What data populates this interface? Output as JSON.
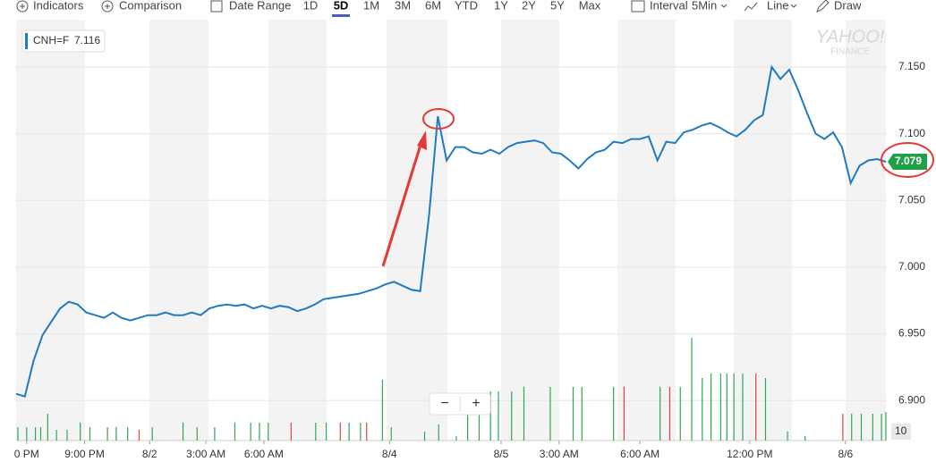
{
  "toolbar": {
    "indicators": "Indicators",
    "comparison": "Comparison",
    "date_range": "Date Range",
    "ranges": [
      "1D",
      "5D",
      "1M",
      "3M",
      "6M",
      "YTD",
      "1Y",
      "2Y",
      "5Y",
      "Max"
    ],
    "active_range": 1,
    "interval": "Interval",
    "interval_value": "5Min",
    "chart_style": "Line",
    "draw": "Draw"
  },
  "watermark": {
    "brand": "YAHOO!",
    "sub": "FINANCE"
  },
  "zoom": {
    "minus": "−",
    "plus": "+"
  },
  "chart_data": {
    "type": "line",
    "legend_symbol": "CNH=F",
    "legend_value": 7.116,
    "x": [
      0,
      1,
      2,
      3,
      4,
      5,
      6,
      7,
      8,
      9,
      10,
      11,
      12,
      13,
      14,
      15,
      16,
      17,
      18,
      19,
      20,
      21,
      22,
      23,
      24,
      25,
      26,
      27,
      28,
      29,
      30,
      31,
      32,
      33,
      34,
      35,
      36,
      37,
      38,
      39,
      40,
      41,
      42,
      43,
      44,
      45,
      46,
      47,
      48,
      49,
      50,
      51,
      52,
      53,
      54,
      55,
      56,
      57,
      58,
      59,
      60,
      61,
      62,
      63,
      64,
      65,
      66,
      67,
      68,
      69,
      70,
      71,
      72,
      73,
      74,
      75,
      76,
      77,
      78,
      79,
      80,
      81,
      82,
      83,
      84,
      85,
      86,
      87,
      88,
      89,
      90,
      91,
      92,
      93,
      94,
      95,
      96,
      97,
      98,
      99
    ],
    "series": [
      {
        "name": "CNH=F",
        "color": "#1f7bc1",
        "values": [
          6.905,
          6.903,
          6.93,
          6.949,
          6.959,
          6.969,
          6.974,
          6.972,
          6.966,
          6.964,
          6.962,
          6.966,
          6.962,
          6.96,
          6.962,
          6.964,
          6.964,
          6.966,
          6.964,
          6.964,
          6.966,
          6.964,
          6.969,
          6.971,
          6.972,
          6.971,
          6.972,
          6.969,
          6.971,
          6.969,
          6.971,
          6.97,
          6.967,
          6.969,
          6.972,
          6.976,
          6.977,
          6.978,
          6.979,
          6.98,
          6.982,
          6.984,
          6.987,
          6.989,
          6.986,
          6.983,
          6.982,
          7.039,
          7.113,
          7.08,
          7.09,
          7.09,
          7.086,
          7.085,
          7.088,
          7.085,
          7.09,
          7.093,
          7.094,
          7.095,
          7.093,
          7.086,
          7.085,
          7.08,
          7.074,
          7.081,
          7.086,
          7.088,
          7.094,
          7.093,
          7.096,
          7.096,
          7.098,
          7.08,
          7.094,
          7.093,
          7.101,
          7.103,
          7.106,
          7.108,
          7.105,
          7.101,
          7.098,
          7.103,
          7.11,
          7.114,
          7.15,
          7.141,
          7.148,
          7.133,
          7.116,
          7.1,
          7.096,
          7.101,
          7.09,
          7.063,
          7.076,
          7.08,
          7.081,
          7.079
        ]
      }
    ],
    "last_color": "#21a04a",
    "xlim": [
      0,
      99
    ],
    "xticks": [
      {
        "value": 1.2,
        "label": "0 PM"
      },
      {
        "value": 7.8,
        "label": "9:00 PM"
      },
      {
        "value": 15.2,
        "label": "8/2"
      },
      {
        "value": 21.6,
        "label": "3:00 AM"
      },
      {
        "value": 28.2,
        "label": "6:00 AM"
      },
      {
        "value": 42.5,
        "label": "8/4"
      },
      {
        "value": 55.2,
        "label": "8/5"
      },
      {
        "value": 61.8,
        "label": "3:00 AM"
      },
      {
        "value": 71.0,
        "label": "6:00 AM"
      },
      {
        "value": 83.5,
        "label": "12:00 PM"
      },
      {
        "value": 94.4,
        "label": "8/6"
      }
    ],
    "ylim": [
      6.87,
      7.1855
    ],
    "yticks": [
      {
        "value": 6.9,
        "label": "6.900"
      },
      {
        "value": 6.95,
        "label": "6.950"
      },
      {
        "value": 7.0,
        "label": "7.000"
      },
      {
        "value": 7.05,
        "label": "7.050"
      },
      {
        "value": 7.1,
        "label": "7.100"
      },
      {
        "value": 7.15,
        "label": "7.150"
      }
    ],
    "grid": true,
    "y2lim": [
      0,
      471
    ],
    "y2ticks": [
      10
    ],
    "volume": {
      "axis": "y2",
      "x": [
        0.2,
        1.2,
        2.2,
        2.8,
        3.6,
        4.6,
        5.8,
        7.3,
        8.4,
        10.4,
        11.4,
        12.7,
        14.0,
        15.5,
        19.0,
        20.6,
        22.6,
        24.9,
        26.7,
        27.7,
        28.7,
        31.3,
        34.1,
        35.3,
        36.9,
        37.9,
        39.2,
        39.9,
        41.7,
        42.7,
        46.5,
        48.1,
        50.1,
        51.4,
        52.7,
        54.0,
        54.9,
        56.4,
        57.8,
        60.8,
        63.4,
        64.4,
        68.0,
        69.2,
        73.3,
        74.4,
        75.6,
        76.9,
        78.1,
        79.1,
        80.2,
        80.9,
        81.7,
        82.7,
        84.2,
        85.3,
        87.8,
        89.8,
        94.1,
        95.1,
        96.2,
        97.5,
        98.5,
        99.0
      ],
      "values": [
        15,
        15,
        15,
        15,
        30,
        12,
        12,
        20,
        15,
        15,
        15,
        15,
        12,
        15,
        20,
        15,
        15,
        20,
        20,
        20,
        20,
        20,
        20,
        20,
        20,
        20,
        20,
        20,
        68,
        15,
        10,
        18,
        5,
        50,
        50,
        55,
        55,
        55,
        60,
        60,
        60,
        60,
        60,
        60,
        60,
        60,
        60,
        115,
        70,
        75,
        75,
        75,
        75,
        75,
        75,
        70,
        10,
        5,
        30,
        30,
        30,
        30,
        30,
        32
      ],
      "colors": [
        "#2ea94f",
        "#2ea94f",
        "#2ea94f",
        "#2ea94f",
        "#2ea94f",
        "#2ea94f",
        "#2ea94f",
        "#2ea94f",
        "#2ea94f",
        "#2ea94f",
        "#2ea94f",
        "#2ea94f",
        "#e0403f",
        "#2ea94f",
        "#2ea94f",
        "#2ea94f",
        "#2ea94f",
        "#2ea94f",
        "#2ea94f",
        "#2ea94f",
        "#2ea94f",
        "#e0403f",
        "#2ea94f",
        "#2ea94f",
        "#e0403f",
        "#2ea94f",
        "#2ea94f",
        "#e0403f",
        "#2ea94f",
        "#2ea94f",
        "#2ea94f",
        "#2ea94f",
        "#2ea94f",
        "#2ea94f",
        "#2ea94f",
        "#2ea94f",
        "#2ea94f",
        "#2ea94f",
        "#2ea94f",
        "#2ea94f",
        "#2ea94f",
        "#2ea94f",
        "#2ea94f",
        "#e0403f",
        "#2ea94f",
        "#e0403f",
        "#2ea94f",
        "#2ea94f",
        "#2ea94f",
        "#2ea94f",
        "#2ea94f",
        "#2ea94f",
        "#2ea94f",
        "#2ea94f",
        "#e0403f",
        "#2ea94f",
        "#2ea94f",
        "#2ea94f",
        "#e0403f",
        "#2ea94f",
        "#2ea94f",
        "#2ea94f",
        "#2ea94f",
        "#2ea94f"
      ]
    }
  }
}
